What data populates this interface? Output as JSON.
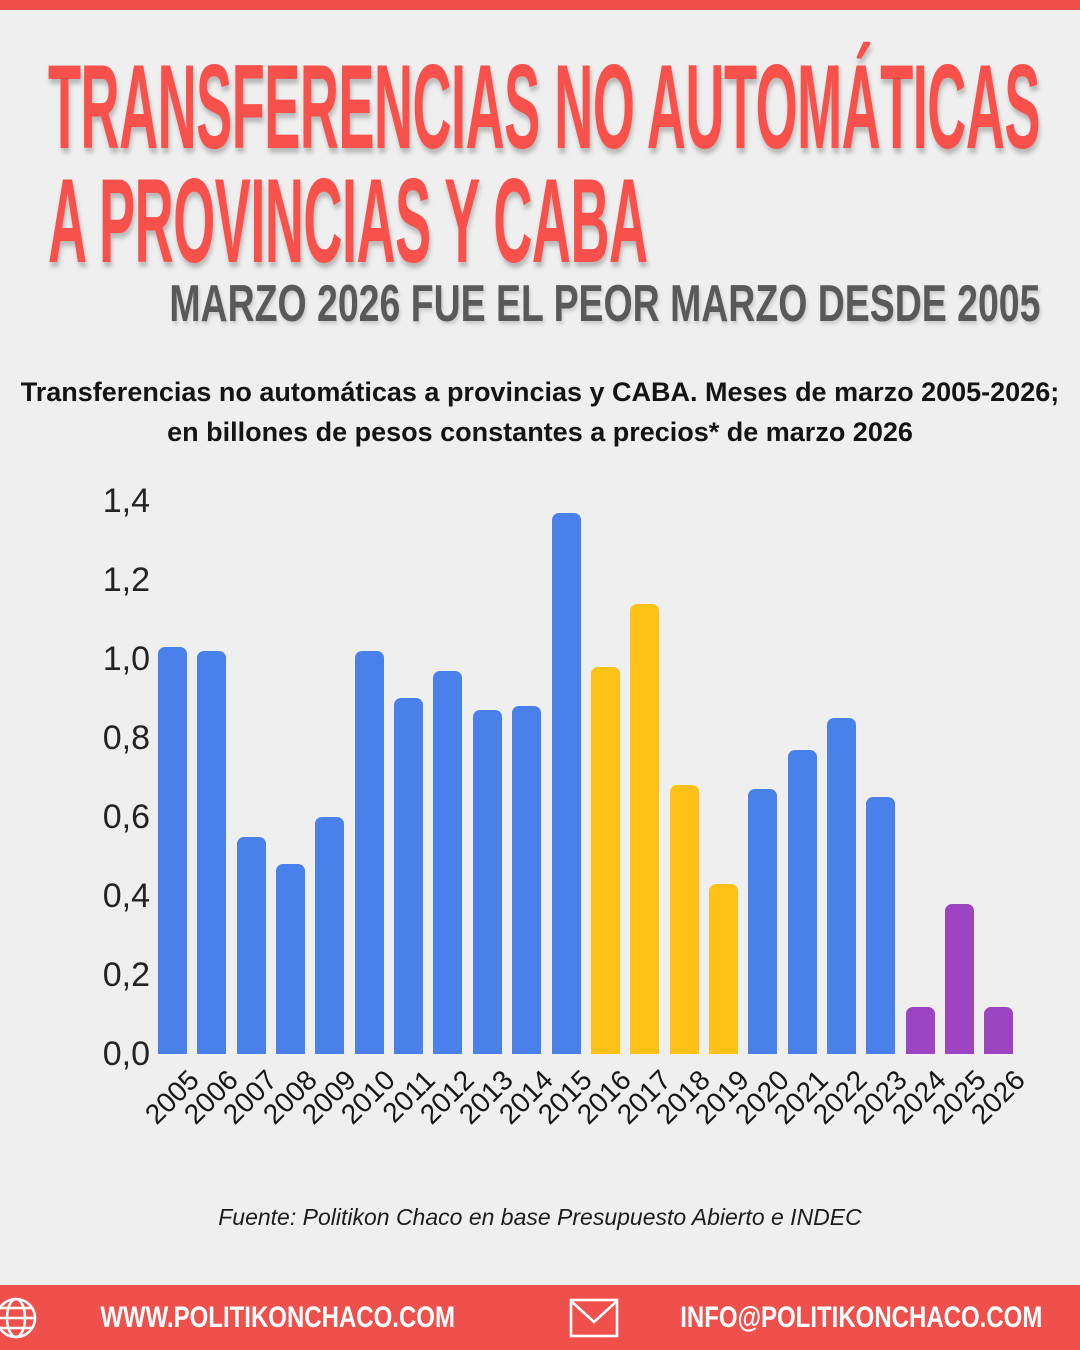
{
  "page": {
    "background": "#efefef",
    "accent_red": "#f0504b"
  },
  "header": {
    "title_line1": "TRANSFERENCIAS NO AUTOMÁTICAS",
    "title_line2": "A PROVINCIAS Y CABA",
    "title_color": "#f8514b",
    "subtitle": "MARZO 2026 FUE EL PEOR MARZO DESDE 2005",
    "subtitle_color": "#595959"
  },
  "description": {
    "line1": "Transferencias no automáticas a provincias y CABA. Meses de marzo 2005-2026;",
    "line2": "en billones de pesos constantes a precios* de marzo 2026"
  },
  "chart_data": {
    "type": "bar",
    "categories": [
      "2005",
      "2006",
      "2007",
      "2008",
      "2009",
      "2010",
      "2011",
      "2012",
      "2013",
      "2014",
      "2015",
      "2016",
      "2017",
      "2018",
      "2019",
      "2020",
      "2021",
      "2022",
      "2023",
      "2024",
      "2025",
      "2026"
    ],
    "values": [
      1.03,
      1.02,
      0.55,
      0.48,
      0.6,
      1.02,
      0.9,
      0.97,
      0.87,
      0.88,
      1.37,
      0.98,
      1.14,
      0.68,
      0.43,
      0.67,
      0.77,
      0.85,
      0.65,
      0.12,
      0.38,
      0.12
    ],
    "bar_colors": [
      "blue",
      "blue",
      "blue",
      "blue",
      "blue",
      "blue",
      "blue",
      "blue",
      "blue",
      "blue",
      "blue",
      "yellow",
      "yellow",
      "yellow",
      "yellow",
      "blue",
      "blue",
      "blue",
      "blue",
      "purple",
      "purple",
      "purple"
    ],
    "palette": {
      "blue": "#4a80ea",
      "yellow": "#fdc215",
      "purple": "#9d44c3"
    },
    "ylim": [
      0,
      1.4
    ],
    "yticks": [
      {
        "label": "0,0",
        "value": 0.0
      },
      {
        "label": "0,2",
        "value": 0.2
      },
      {
        "label": "0,4",
        "value": 0.4
      },
      {
        "label": "0,6",
        "value": 0.6
      },
      {
        "label": "0,8",
        "value": 0.8
      },
      {
        "label": "1,0",
        "value": 1.0
      },
      {
        "label": "1,2",
        "value": 1.2
      },
      {
        "label": "1,4",
        "value": 1.4
      }
    ],
    "grid": false,
    "legend": false,
    "x_label_rotation": -45,
    "xlabel": "",
    "ylabel": ""
  },
  "source": {
    "text": "Fuente: Politikon Chaco en base Presupuesto Abierto e INDEC"
  },
  "footer": {
    "background": "#f0504b",
    "website": "WWW.POLITIKONCHACO.COM",
    "email": "INFO@POLITIKONCHACO.COM"
  }
}
